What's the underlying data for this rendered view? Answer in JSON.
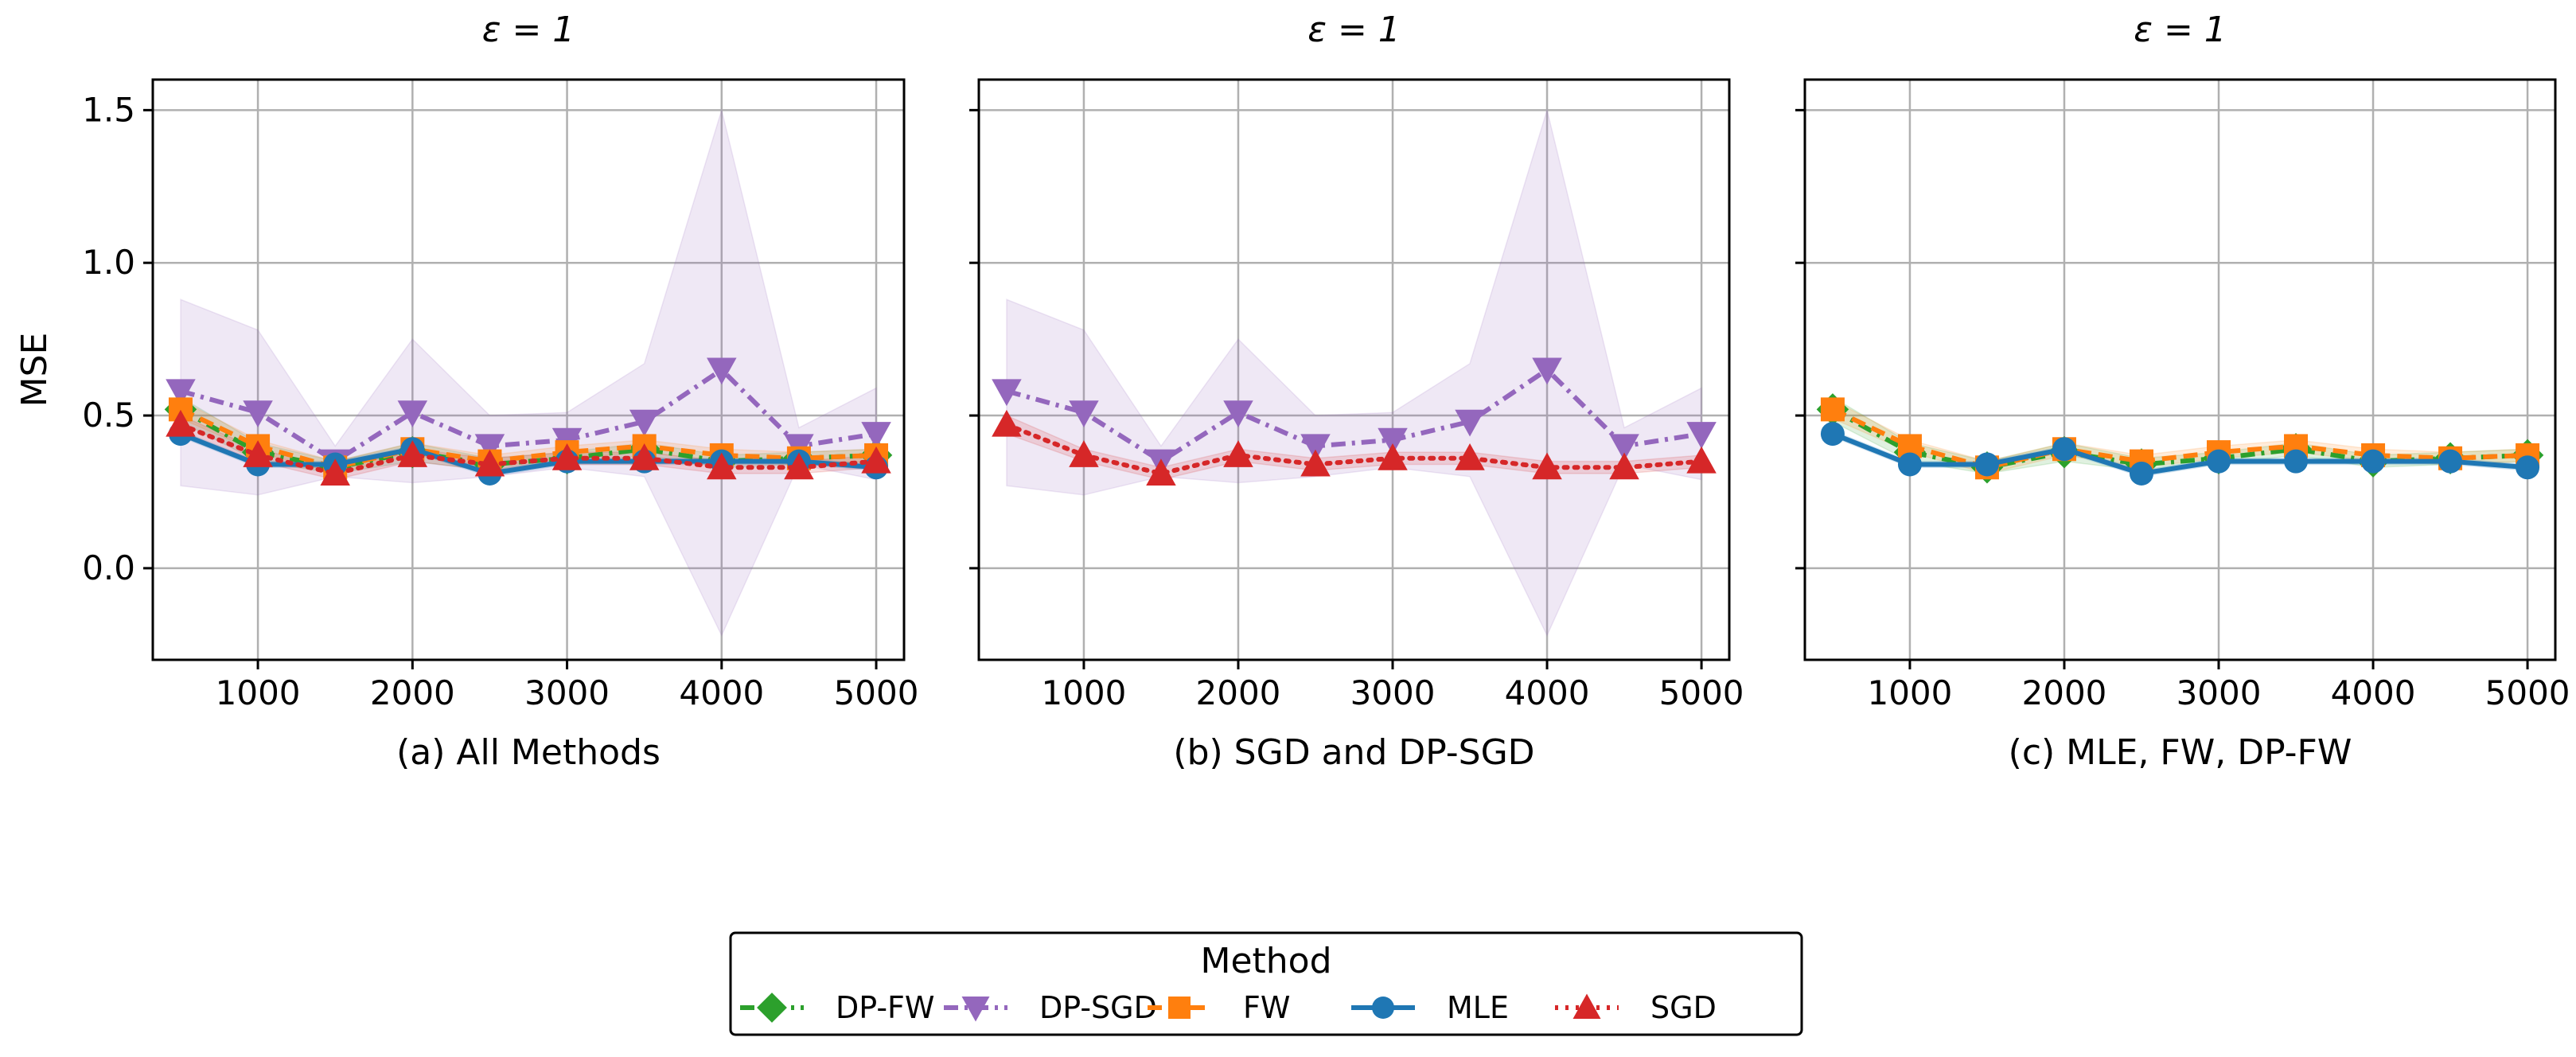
{
  "chart_data": [
    {
      "type": "line",
      "title": "ε = 1",
      "xlabel": "(a) All Methods",
      "ylabel": "MSE",
      "xlim": [
        320,
        5180
      ],
      "ylim": [
        -0.3,
        1.6
      ],
      "xticks": [
        1000,
        2000,
        3000,
        4000,
        5000
      ],
      "yticks": [
        0.0,
        0.5,
        1.0,
        1.5
      ],
      "x": [
        500,
        1000,
        1500,
        2000,
        2500,
        3000,
        3500,
        4000,
        4500,
        5000
      ],
      "series_names": [
        "DP-FW",
        "DP-SGD",
        "FW",
        "MLE",
        "SGD"
      ]
    },
    {
      "type": "line",
      "title": "ε = 1",
      "xlabel": "(b) SGD and DP-SGD",
      "ylabel": "",
      "xlim": [
        320,
        5180
      ],
      "ylim": [
        -0.3,
        1.6
      ],
      "xticks": [
        1000,
        2000,
        3000,
        4000,
        5000
      ],
      "yticks": [
        0.0,
        0.5,
        1.0,
        1.5
      ],
      "x": [
        500,
        1000,
        1500,
        2000,
        2500,
        3000,
        3500,
        4000,
        4500,
        5000
      ],
      "series_names": [
        "DP-SGD",
        "SGD"
      ]
    },
    {
      "type": "line",
      "title": "ε = 1",
      "xlabel": "(c) MLE, FW, DP-FW",
      "ylabel": "",
      "xlim": [
        320,
        5180
      ],
      "ylim": [
        -0.3,
        1.6
      ],
      "xticks": [
        1000,
        2000,
        3000,
        4000,
        5000
      ],
      "yticks": [
        0.0,
        0.5,
        1.0,
        1.5
      ],
      "x": [
        500,
        1000,
        1500,
        2000,
        2500,
        3000,
        3500,
        4000,
        4500,
        5000
      ],
      "series_names": [
        "DP-FW",
        "FW",
        "MLE"
      ]
    }
  ],
  "series": {
    "DP-FW": {
      "color": "#2ca02c",
      "marker": "diamond",
      "dash": "dashdot",
      "values": [
        0.52,
        0.38,
        0.33,
        0.38,
        0.34,
        0.36,
        0.39,
        0.35,
        0.36,
        0.37
      ],
      "band_low": [
        0.48,
        0.35,
        0.31,
        0.35,
        0.32,
        0.34,
        0.37,
        0.33,
        0.34,
        0.35
      ],
      "band_high": [
        0.56,
        0.41,
        0.35,
        0.41,
        0.36,
        0.38,
        0.41,
        0.37,
        0.38,
        0.39
      ]
    },
    "DP-SGD": {
      "color": "#9467bd",
      "marker": "triangle-down",
      "dash": "dashdot",
      "values": [
        0.58,
        0.51,
        0.35,
        0.51,
        0.4,
        0.42,
        0.48,
        0.65,
        0.4,
        0.44
      ],
      "band_low": [
        0.27,
        0.24,
        0.3,
        0.28,
        0.3,
        0.33,
        0.3,
        -0.22,
        0.34,
        0.29
      ],
      "band_high": [
        0.88,
        0.78,
        0.4,
        0.75,
        0.5,
        0.51,
        0.67,
        1.5,
        0.46,
        0.59
      ]
    },
    "FW": {
      "color": "#ff7f0e",
      "marker": "square",
      "dash": "dashed",
      "values": [
        0.52,
        0.4,
        0.33,
        0.39,
        0.35,
        0.38,
        0.4,
        0.37,
        0.36,
        0.37
      ],
      "band_low": [
        0.49,
        0.38,
        0.31,
        0.37,
        0.33,
        0.36,
        0.38,
        0.35,
        0.34,
        0.35
      ],
      "band_high": [
        0.55,
        0.42,
        0.35,
        0.41,
        0.37,
        0.4,
        0.42,
        0.39,
        0.38,
        0.39
      ]
    },
    "MLE": {
      "color": "#1f77b4",
      "marker": "circle",
      "dash": "solid",
      "values": [
        0.44,
        0.34,
        0.34,
        0.39,
        0.31,
        0.35,
        0.35,
        0.35,
        0.35,
        0.33
      ],
      "band_low": [
        0.43,
        0.33,
        0.33,
        0.38,
        0.3,
        0.34,
        0.34,
        0.34,
        0.34,
        0.32
      ],
      "band_high": [
        0.45,
        0.35,
        0.35,
        0.4,
        0.32,
        0.36,
        0.36,
        0.36,
        0.36,
        0.34
      ]
    },
    "SGD": {
      "color": "#d62728",
      "marker": "triangle-up",
      "dash": "dotted",
      "values": [
        0.47,
        0.37,
        0.31,
        0.37,
        0.34,
        0.36,
        0.36,
        0.33,
        0.33,
        0.35
      ],
      "band_low": [
        0.44,
        0.35,
        0.29,
        0.35,
        0.32,
        0.34,
        0.34,
        0.31,
        0.31,
        0.33
      ],
      "band_high": [
        0.5,
        0.39,
        0.33,
        0.39,
        0.36,
        0.38,
        0.38,
        0.35,
        0.35,
        0.37
      ]
    }
  },
  "legend": {
    "title": "Method",
    "entries": [
      "DP-FW",
      "DP-SGD",
      "FW",
      "MLE",
      "SGD"
    ]
  }
}
